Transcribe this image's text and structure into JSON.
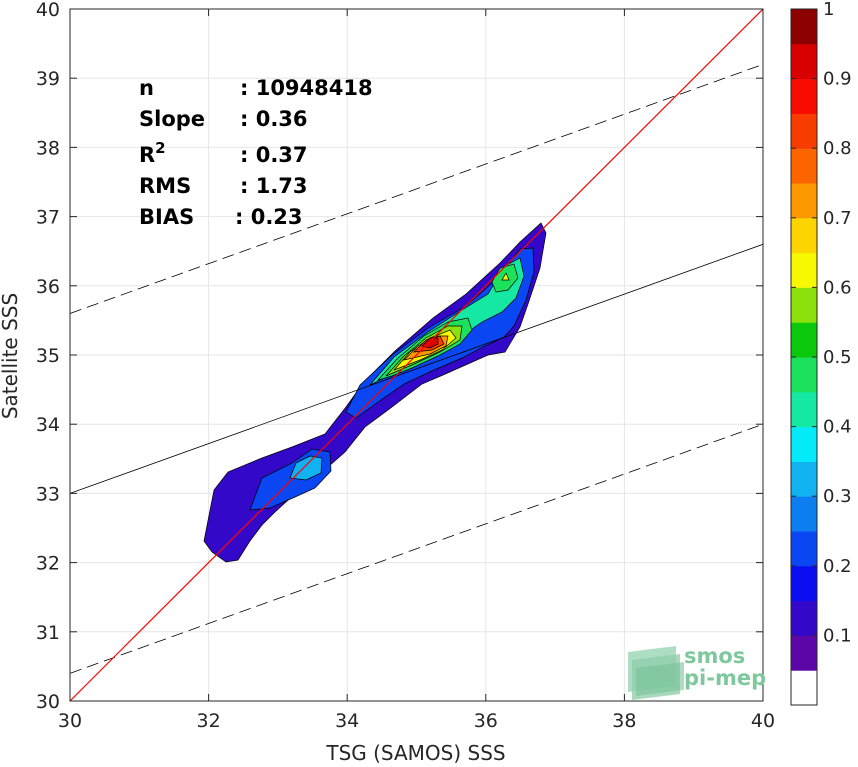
{
  "chart_data": {
    "type": "heatmap",
    "xlabel": "TSG (SAMOS) SSS",
    "ylabel": "Satellite SSS",
    "xlim": [
      30,
      40
    ],
    "ylim": [
      30,
      40
    ],
    "xticks": [
      "30",
      "32",
      "34",
      "36",
      "38",
      "40"
    ],
    "yticks": [
      "30",
      "31",
      "32",
      "33",
      "34",
      "35",
      "36",
      "37",
      "38",
      "39",
      "40"
    ],
    "grid": true,
    "stats": [
      {
        "label": "n",
        "value": ": 10948418"
      },
      {
        "label": "Slope",
        "value": ": 0.36"
      },
      {
        "label": "R",
        "sup": "2",
        "value": ": 0.37"
      },
      {
        "label": "RMS",
        "value": ": 1.73"
      },
      {
        "label": "BIAS",
        "value": ": 0.23"
      }
    ],
    "lines": {
      "identity": {
        "slope": 1,
        "intercept": 0,
        "color": "#ff0000"
      },
      "fit": {
        "slope": 0.36,
        "intercept": 22.2
      },
      "upper_dashed": {
        "slope": 0.36,
        "intercept": 24.8
      },
      "lower_dashed": {
        "slope": 0.36,
        "intercept": 19.6
      }
    },
    "density_peaks": [
      {
        "x": 35.25,
        "y": 35.2,
        "value": 0.95
      },
      {
        "x": 36.25,
        "y": 36.1,
        "value": 0.6
      },
      {
        "x": 33.4,
        "y": 33.4,
        "value": 0.35
      }
    ],
    "colorbar": {
      "ticks": [
        "0.1",
        "0.2",
        "0.3",
        "0.4",
        "0.5",
        "0.6",
        "0.7",
        "0.8",
        "0.9",
        "1"
      ],
      "colors": [
        "#ffffff",
        "#5c06a8",
        "#3308c8",
        "#0a0ef0",
        "#0a46f2",
        "#0d7ef0",
        "#11b2f0",
        "#05eaf8",
        "#14e8a2",
        "#1ce15c",
        "#0cc80c",
        "#8ce00c",
        "#f8f800",
        "#fcd400",
        "#fc9800",
        "#fc6400",
        "#f83c00",
        "#f80c00",
        "#d80000",
        "#8c0000"
      ]
    }
  },
  "logo": {
    "line1": "smos",
    "line2": "pi-mep"
  }
}
